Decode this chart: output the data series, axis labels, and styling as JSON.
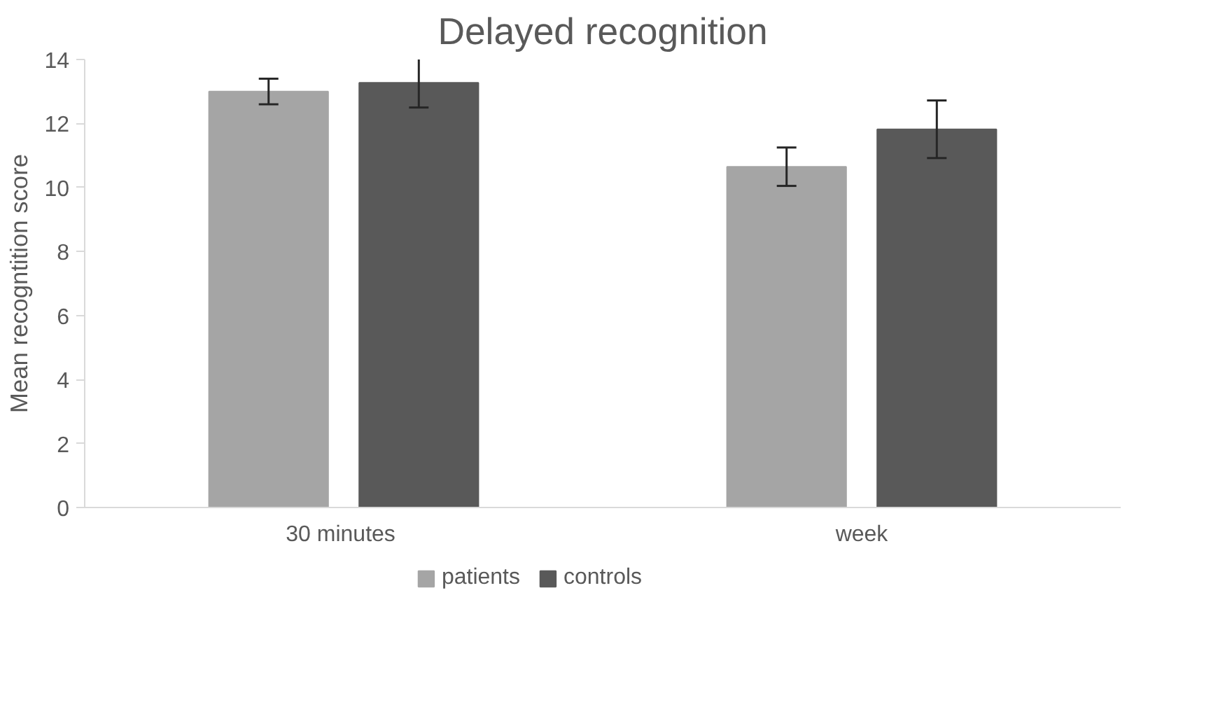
{
  "chart_data": {
    "type": "bar",
    "title": "Delayed recognition",
    "ylabel": "Mean recogntition score",
    "categories": [
      "30  minutes",
      "week"
    ],
    "series": [
      {
        "name": "patients",
        "color": "#a5a5a5",
        "values": [
          13.0,
          10.65
        ],
        "errors": [
          0.4,
          0.6
        ]
      },
      {
        "name": "controls",
        "color": "#595959",
        "values": [
          13.27,
          11.82
        ],
        "errors": [
          0.77,
          0.9
        ]
      }
    ],
    "ylim": [
      0,
      14
    ],
    "yticks": [
      0,
      2,
      4,
      6,
      8,
      10,
      12,
      14
    ],
    "grid": false,
    "legend": "bottom"
  }
}
